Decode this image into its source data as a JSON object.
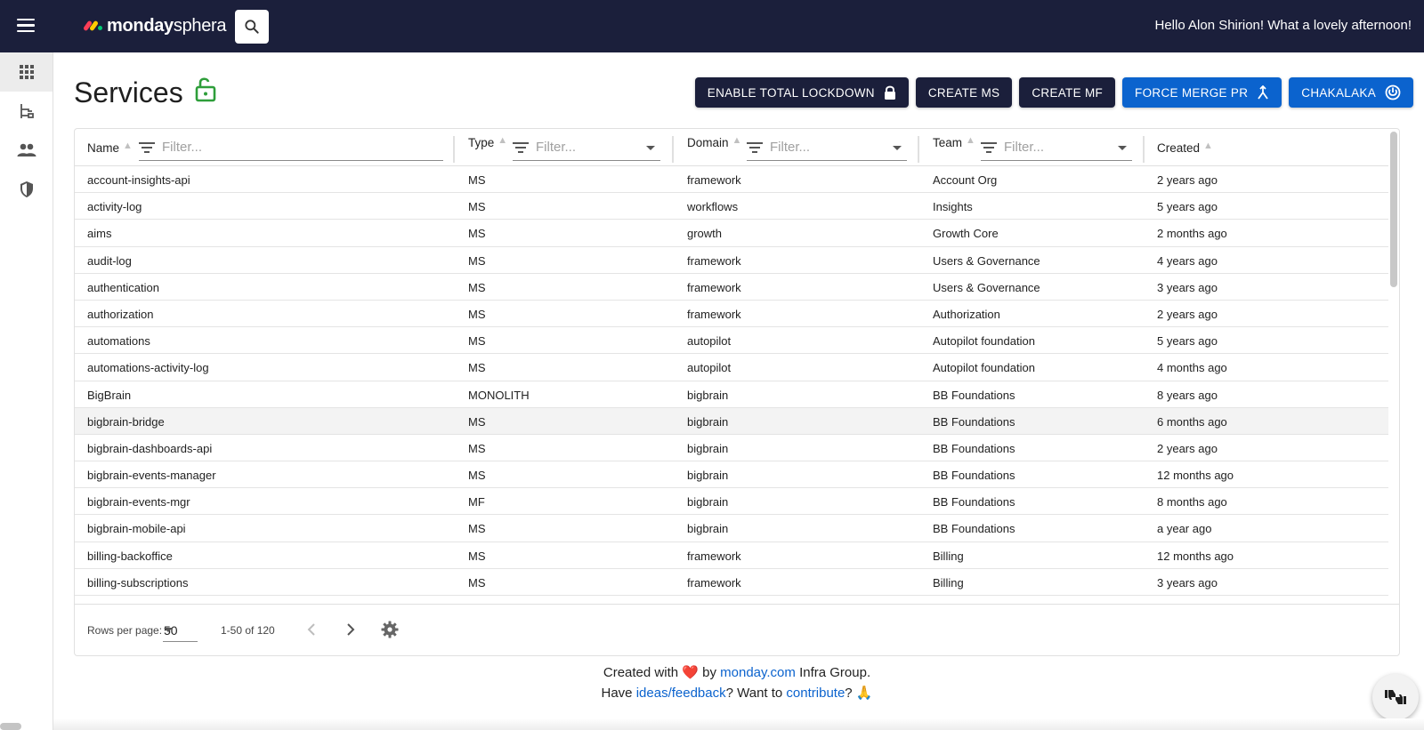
{
  "header": {
    "logo_brand": "monday",
    "logo_product": "sphera",
    "greeting": "Hello Alon Shirion! What a lovely afternoon!"
  },
  "sidebar": {
    "items": [
      {
        "icon": "apps-grid-icon",
        "active": true
      },
      {
        "icon": "hierarchy-icon",
        "active": false
      },
      {
        "icon": "people-icon",
        "active": false
      },
      {
        "icon": "shield-icon",
        "active": false
      }
    ]
  },
  "page": {
    "title": "Services"
  },
  "actions": {
    "lockdown": "ENABLE TOTAL LOCKDOWN",
    "create_ms": "CREATE MS",
    "create_mf": "CREATE MF",
    "force_merge": "FORCE MERGE PR",
    "chakalaka": "CHAKALAKA"
  },
  "table": {
    "columns": {
      "name": "Name",
      "type": "Type",
      "domain": "Domain",
      "team": "Team",
      "created": "Created"
    },
    "filter_placeholder": "Filter...",
    "rows": [
      [
        "account-insights-api",
        "MS",
        "framework",
        "Account Org",
        "2 years ago"
      ],
      [
        "activity-log",
        "MS",
        "workflows",
        "Insights",
        "5 years ago"
      ],
      [
        "aims",
        "MS",
        "growth",
        "Growth Core",
        "2 months ago"
      ],
      [
        "audit-log",
        "MS",
        "framework",
        "Users & Governance",
        "4 years ago"
      ],
      [
        "authentication",
        "MS",
        "framework",
        "Users & Governance",
        "3 years ago"
      ],
      [
        "authorization",
        "MS",
        "framework",
        "Authorization",
        "2 years ago"
      ],
      [
        "automations",
        "MS",
        "autopilot",
        "Autopilot foundation",
        "5 years ago"
      ],
      [
        "automations-activity-log",
        "MS",
        "autopilot",
        "Autopilot foundation",
        "4 months ago"
      ],
      [
        "BigBrain",
        "MONOLITH",
        "bigbrain",
        "BB Foundations",
        "8 years ago"
      ],
      [
        "bigbrain-bridge",
        "MS",
        "bigbrain",
        "BB Foundations",
        "6 months ago"
      ],
      [
        "bigbrain-dashboards-api",
        "MS",
        "bigbrain",
        "BB Foundations",
        "2 years ago"
      ],
      [
        "bigbrain-events-manager",
        "MS",
        "bigbrain",
        "BB Foundations",
        "12 months ago"
      ],
      [
        "bigbrain-events-mgr",
        "MF",
        "bigbrain",
        "BB Foundations",
        "8 months ago"
      ],
      [
        "bigbrain-mobile-api",
        "MS",
        "bigbrain",
        "BB Foundations",
        "a year ago"
      ],
      [
        "billing-backoffice",
        "MS",
        "framework",
        "Billing",
        "12 months ago"
      ],
      [
        "billing-subscriptions",
        "MS",
        "framework",
        "Billing",
        "3 years ago"
      ]
    ],
    "hovered_row": 9
  },
  "pagination": {
    "rows_per_page_label": "Rows per page:",
    "rows_per_page": "50",
    "range": "1-50 of 120"
  },
  "credits": {
    "line1_pre": "Created with",
    "heart": "❤️",
    "line1_by": "by",
    "line1_link": "monday.com",
    "line1_post": "Infra Group.",
    "line2_pre": "Have",
    "line2_link1": "ideas/feedback",
    "line2_mid": "? Want to",
    "line2_link2": "contribute",
    "line2_post": "? 🙏"
  },
  "colors": {
    "header_bg": "#1b1f3b",
    "primary_blue": "#0b63ce",
    "lock_green": "#2e9e3a"
  }
}
